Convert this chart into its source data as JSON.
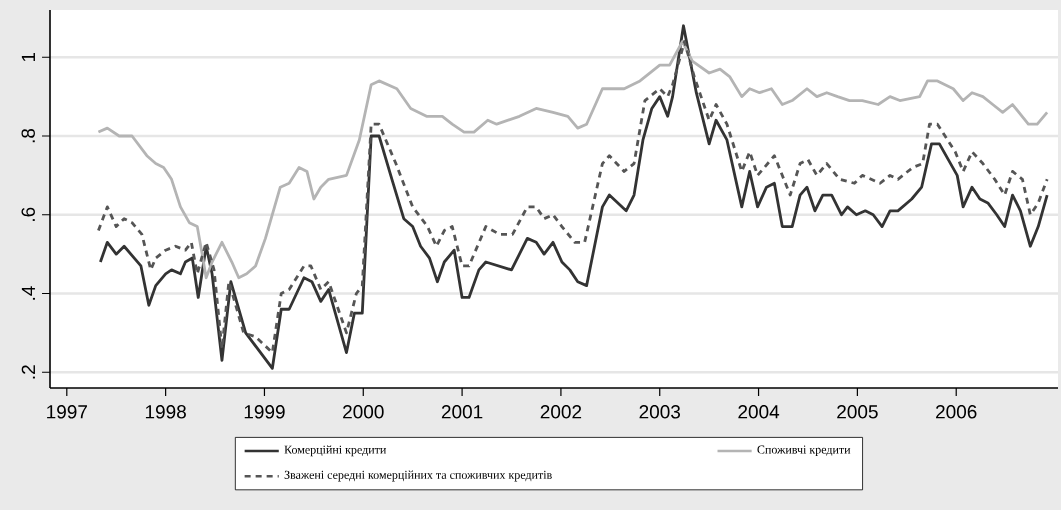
{
  "chart_data": {
    "type": "line",
    "xlim": [
      1996.83,
      2007.03
    ],
    "ylim": [
      0.16,
      1.12
    ],
    "xticks": [
      1997,
      1998,
      1999,
      2000,
      2001,
      2002,
      2003,
      2004,
      2005,
      2006
    ],
    "yticks": [
      {
        "value": 0.2,
        "label": ".2"
      },
      {
        "value": 0.4,
        "label": ".4"
      },
      {
        "value": 0.6,
        "label": ".6"
      },
      {
        "value": 0.8,
        "label": ".8"
      },
      {
        "value": 1,
        "label": "1"
      }
    ],
    "grid": "y",
    "legend": "bottom",
    "series": [
      {
        "name": "Комерційні кредити",
        "color": "#333333",
        "line_style": "solid",
        "x": [
          1997.34,
          1997.41,
          1997.5,
          1997.58,
          1997.75,
          1997.83,
          1997.9,
          1998.0,
          1998.06,
          1998.15,
          1998.2,
          1998.27,
          1998.33,
          1998.41,
          1998.47,
          1998.57,
          1998.66,
          1998.81,
          1999.08,
          1999.17,
          1999.25,
          1999.4,
          1999.48,
          1999.57,
          1999.65,
          1999.83,
          1999.91,
          1999.99,
          2000.08,
          2000.16,
          2000.29,
          2000.41,
          2000.5,
          2000.58,
          2000.67,
          2000.75,
          2000.82,
          2000.92,
          2001.0,
          2001.07,
          2001.17,
          2001.24,
          2001.5,
          2001.66,
          2001.75,
          2001.83,
          2001.92,
          2002.01,
          2002.09,
          2002.17,
          2002.26,
          2002.42,
          2002.49,
          2002.66,
          2002.74,
          2002.83,
          2002.92,
          2003.0,
          2003.08,
          2003.13,
          2003.24,
          2003.37,
          2003.5,
          2003.57,
          2003.68,
          2003.83,
          2003.91,
          2003.99,
          2004.08,
          2004.16,
          2004.24,
          2004.34,
          2004.42,
          2004.49,
          2004.57,
          2004.65,
          2004.74,
          2004.84,
          2004.9,
          2004.99,
          2005.08,
          2005.16,
          2005.25,
          2005.33,
          2005.41,
          2005.55,
          2005.65,
          2005.75,
          2005.83,
          2006.01,
          2006.07,
          2006.16,
          2006.24,
          2006.32,
          2006.41,
          2006.49,
          2006.57,
          2006.65,
          2006.75,
          2006.83,
          2006.92
        ],
        "values": [
          0.48,
          0.53,
          0.5,
          0.52,
          0.47,
          0.37,
          0.42,
          0.45,
          0.46,
          0.45,
          0.48,
          0.49,
          0.39,
          0.52,
          0.45,
          0.23,
          0.43,
          0.3,
          0.21,
          0.36,
          0.36,
          0.44,
          0.43,
          0.38,
          0.41,
          0.25,
          0.35,
          0.35,
          0.8,
          0.8,
          0.69,
          0.59,
          0.57,
          0.52,
          0.49,
          0.43,
          0.48,
          0.51,
          0.39,
          0.39,
          0.46,
          0.48,
          0.46,
          0.54,
          0.53,
          0.5,
          0.53,
          0.48,
          0.46,
          0.43,
          0.42,
          0.62,
          0.65,
          0.61,
          0.65,
          0.79,
          0.87,
          0.9,
          0.85,
          0.9,
          1.08,
          0.91,
          0.78,
          0.84,
          0.79,
          0.62,
          0.71,
          0.62,
          0.67,
          0.68,
          0.57,
          0.57,
          0.65,
          0.67,
          0.61,
          0.65,
          0.65,
          0.6,
          0.62,
          0.6,
          0.61,
          0.6,
          0.57,
          0.61,
          0.61,
          0.64,
          0.67,
          0.78,
          0.78,
          0.7,
          0.62,
          0.67,
          0.64,
          0.63,
          0.6,
          0.57,
          0.65,
          0.61,
          0.52,
          0.57,
          0.65
        ]
      },
      {
        "name": "Споживчі кредити",
        "color": "#b4b4b4",
        "line_style": "solid",
        "x": [
          1997.32,
          1997.41,
          1997.53,
          1997.66,
          1997.81,
          1997.9,
          1997.98,
          1998.06,
          1998.15,
          1998.24,
          1998.32,
          1998.37,
          1998.41,
          1998.47,
          1998.57,
          1998.67,
          1998.74,
          1998.82,
          1998.91,
          1999.01,
          1999.16,
          1999.25,
          1999.35,
          1999.43,
          1999.5,
          1999.57,
          1999.65,
          1999.83,
          1999.96,
          2000.08,
          2000.16,
          2000.34,
          2000.48,
          2000.64,
          2000.8,
          2000.9,
          2001.02,
          2001.12,
          2001.26,
          2001.35,
          2001.58,
          2001.75,
          2001.92,
          2002.07,
          2002.17,
          2002.26,
          2002.42,
          2002.51,
          2002.64,
          2002.8,
          2003.0,
          2003.1,
          2003.23,
          2003.33,
          2003.5,
          2003.61,
          2003.71,
          2003.83,
          2003.91,
          2004.01,
          2004.13,
          2004.24,
          2004.34,
          2004.49,
          2004.59,
          2004.69,
          2004.8,
          2004.92,
          2005.05,
          2005.21,
          2005.33,
          2005.43,
          2005.63,
          2005.71,
          2005.81,
          2005.97,
          2006.07,
          2006.16,
          2006.27,
          2006.37,
          2006.47,
          2006.57,
          2006.73,
          2006.82,
          2006.92
        ],
        "values": [
          0.81,
          0.82,
          0.8,
          0.8,
          0.75,
          0.73,
          0.72,
          0.69,
          0.62,
          0.58,
          0.57,
          0.5,
          0.44,
          0.48,
          0.53,
          0.48,
          0.44,
          0.45,
          0.47,
          0.54,
          0.67,
          0.68,
          0.72,
          0.71,
          0.64,
          0.67,
          0.69,
          0.7,
          0.79,
          0.93,
          0.94,
          0.92,
          0.87,
          0.85,
          0.85,
          0.83,
          0.81,
          0.81,
          0.84,
          0.83,
          0.85,
          0.87,
          0.86,
          0.85,
          0.82,
          0.83,
          0.92,
          0.92,
          0.92,
          0.94,
          0.98,
          0.98,
          1.04,
          0.99,
          0.96,
          0.97,
          0.95,
          0.9,
          0.92,
          0.91,
          0.92,
          0.88,
          0.89,
          0.92,
          0.9,
          0.91,
          0.9,
          0.89,
          0.89,
          0.88,
          0.9,
          0.89,
          0.9,
          0.94,
          0.94,
          0.92,
          0.89,
          0.91,
          0.9,
          0.88,
          0.86,
          0.88,
          0.83,
          0.83,
          0.86
        ]
      },
      {
        "name": "Зважені середні комерційних та споживчих кредитів",
        "color": "#555555",
        "line_style": "dashed",
        "x": [
          1997.32,
          1997.41,
          1997.5,
          1997.58,
          1997.66,
          1997.76,
          1997.85,
          1997.9,
          1998.0,
          1998.1,
          1998.2,
          1998.26,
          1998.32,
          1998.41,
          1998.49,
          1998.57,
          1998.64,
          1998.79,
          1998.91,
          1999.08,
          1999.17,
          1999.25,
          1999.4,
          1999.47,
          1999.57,
          1999.65,
          1999.83,
          1999.93,
          1999.99,
          2000.08,
          2000.16,
          2000.33,
          2000.5,
          2000.65,
          2000.74,
          2000.82,
          2000.9,
          2001.0,
          2001.07,
          2001.24,
          2001.38,
          2001.51,
          2001.66,
          2001.75,
          2001.83,
          2001.92,
          2002.01,
          2002.14,
          2002.24,
          2002.42,
          2002.49,
          2002.64,
          2002.74,
          2002.85,
          2003.0,
          2003.08,
          2003.13,
          2003.25,
          2003.35,
          2003.5,
          2003.57,
          2003.68,
          2003.83,
          2003.91,
          2003.99,
          2004.16,
          2004.32,
          2004.42,
          2004.5,
          2004.59,
          2004.69,
          2004.82,
          2004.97,
          2005.05,
          2005.23,
          2005.33,
          2005.41,
          2005.56,
          2005.66,
          2005.73,
          2005.81,
          2005.99,
          2006.07,
          2006.16,
          2006.27,
          2006.39,
          2006.49,
          2006.57,
          2006.67,
          2006.75,
          2006.83,
          2006.92
        ],
        "values": [
          0.56,
          0.62,
          0.57,
          0.59,
          0.58,
          0.55,
          0.46,
          0.49,
          0.51,
          0.52,
          0.51,
          0.53,
          0.45,
          0.53,
          0.46,
          0.26,
          0.43,
          0.3,
          0.29,
          0.25,
          0.4,
          0.41,
          0.47,
          0.47,
          0.41,
          0.43,
          0.3,
          0.4,
          0.42,
          0.83,
          0.83,
          0.73,
          0.62,
          0.57,
          0.52,
          0.56,
          0.57,
          0.47,
          0.47,
          0.57,
          0.55,
          0.55,
          0.62,
          0.62,
          0.59,
          0.6,
          0.57,
          0.53,
          0.53,
          0.73,
          0.75,
          0.71,
          0.73,
          0.89,
          0.92,
          0.9,
          0.93,
          1.04,
          0.95,
          0.84,
          0.88,
          0.83,
          0.71,
          0.76,
          0.7,
          0.75,
          0.65,
          0.73,
          0.74,
          0.7,
          0.73,
          0.69,
          0.68,
          0.7,
          0.68,
          0.7,
          0.69,
          0.72,
          0.73,
          0.83,
          0.83,
          0.76,
          0.71,
          0.76,
          0.73,
          0.69,
          0.65,
          0.71,
          0.69,
          0.6,
          0.63,
          0.69
        ]
      }
    ]
  }
}
